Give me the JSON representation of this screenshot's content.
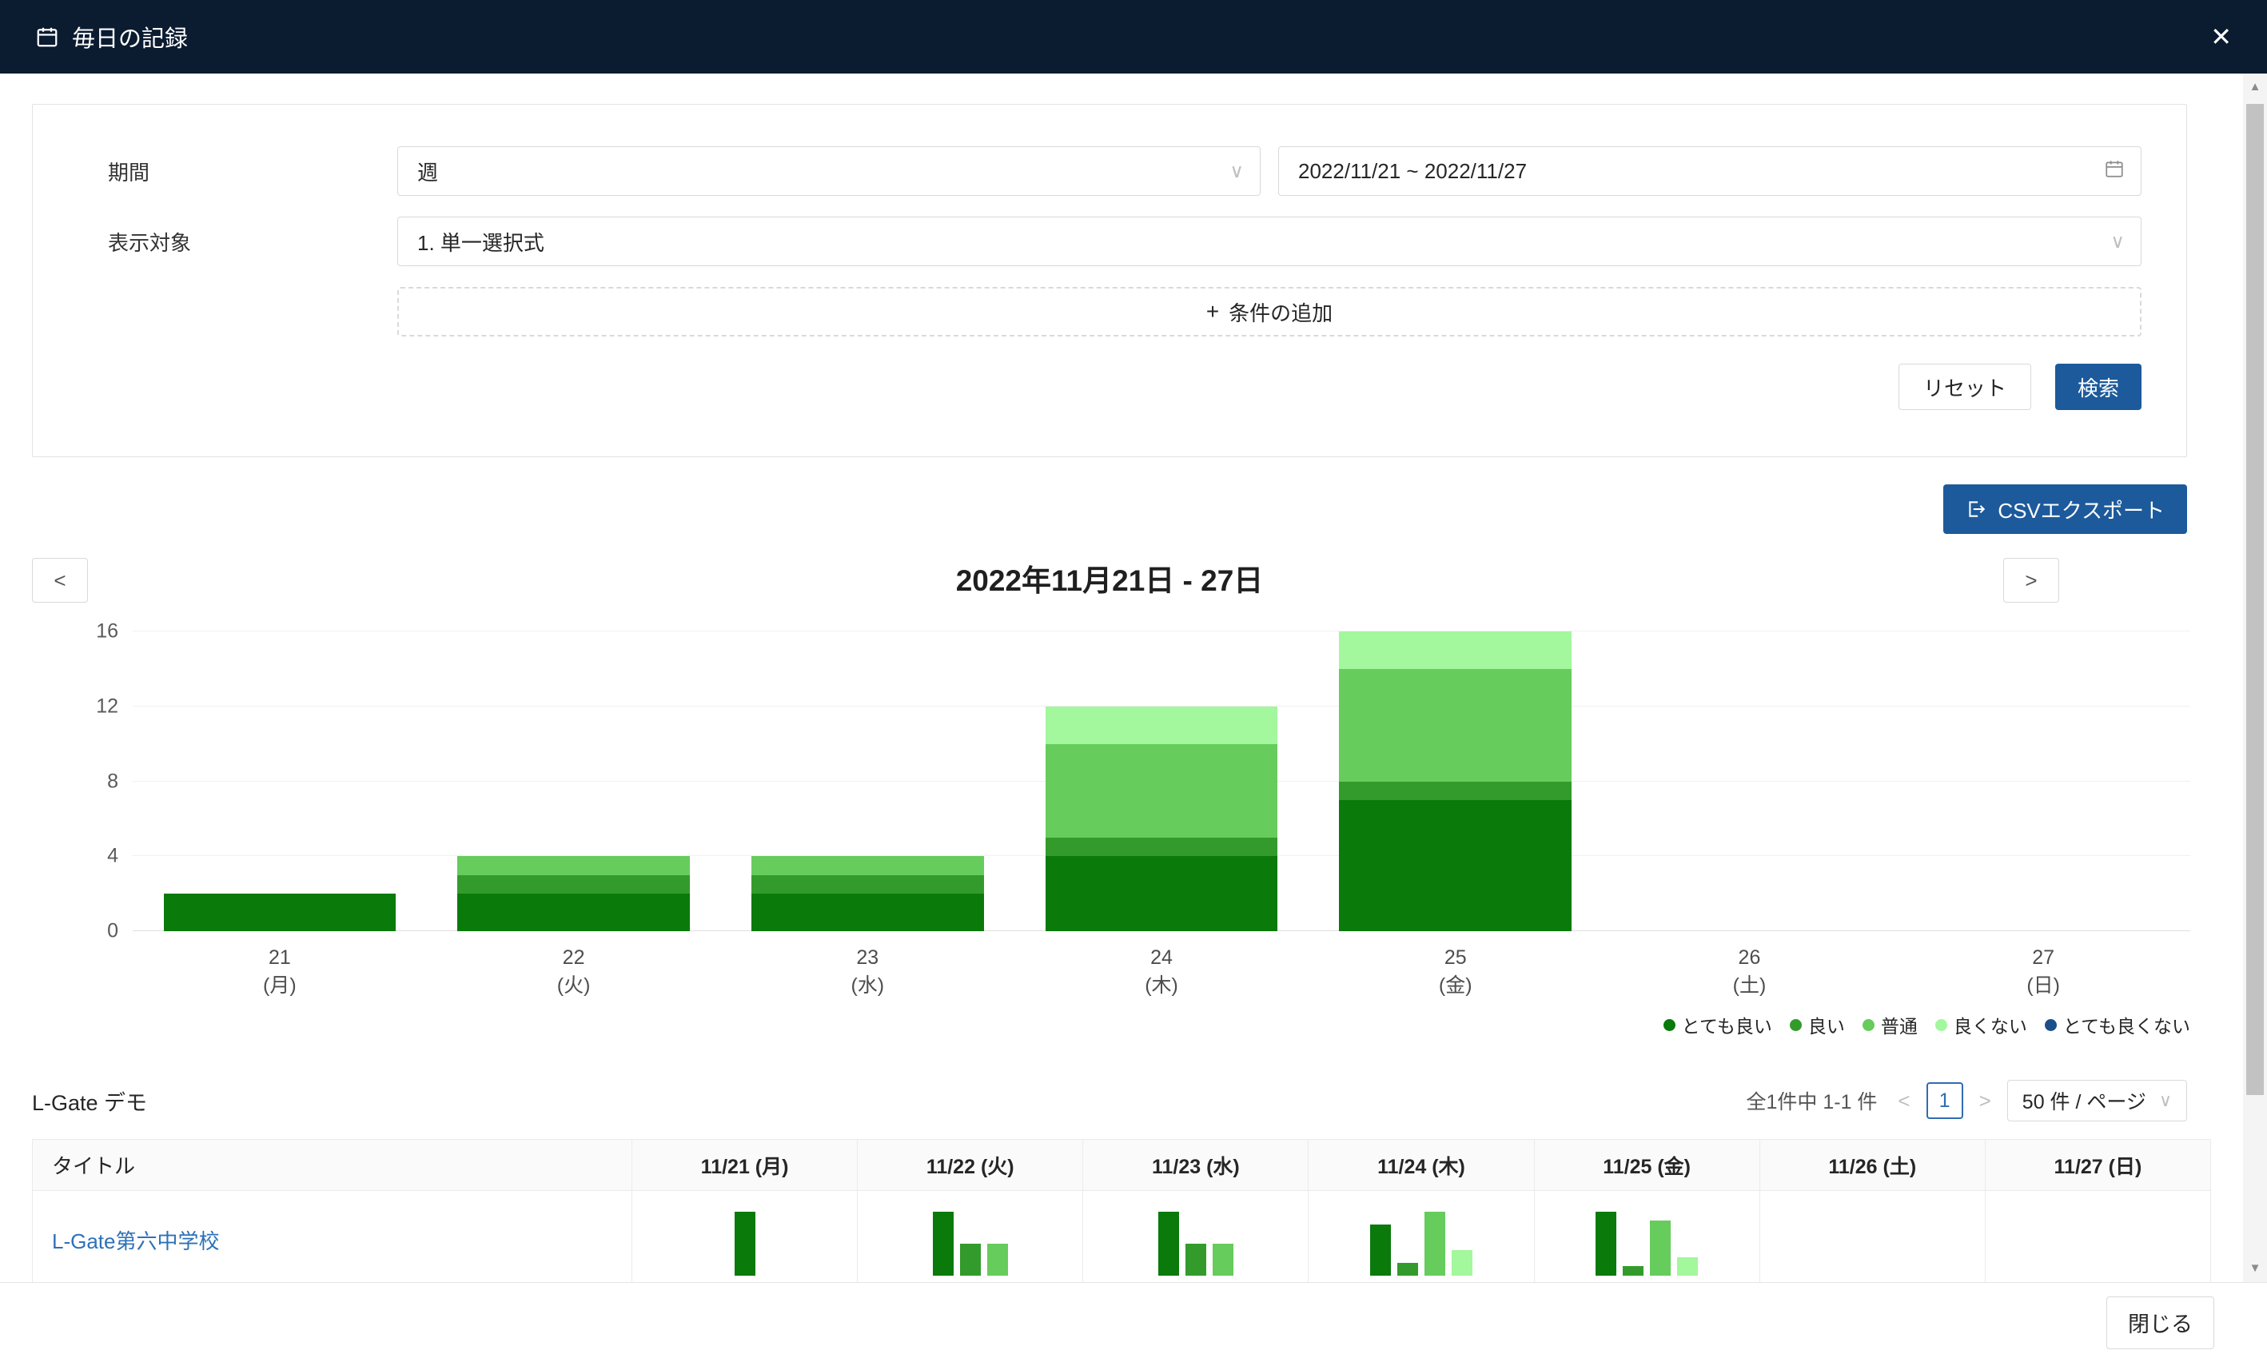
{
  "modal": {
    "title": "毎日の記録",
    "close_glyph": "✕"
  },
  "filters": {
    "period_label": "期間",
    "period_value": "週",
    "date_range": "2022/11/21 ~ 2022/11/27",
    "target_label": "表示対象",
    "target_value": "1. 単一選択式",
    "add_condition_label": "条件の追加",
    "add_condition_plus": "+",
    "reset_label": "リセット",
    "search_label": "検索"
  },
  "toolbar": {
    "csv_export_label": "CSVエクスポート"
  },
  "chart_nav": {
    "prev": "<",
    "next": ">"
  },
  "colors": {
    "primary_blue": "#1d5a9b",
    "header_navy": "#0b1b30",
    "link_blue": "#2e71b8"
  },
  "chart_data": {
    "type": "bar",
    "stacked": true,
    "title": "2022年11月21日 - 27日",
    "categories": [
      {
        "day": "21",
        "weekday": "(月)"
      },
      {
        "day": "22",
        "weekday": "(火)"
      },
      {
        "day": "23",
        "weekday": "(水)"
      },
      {
        "day": "24",
        "weekday": "(木)"
      },
      {
        "day": "25",
        "weekday": "(金)"
      },
      {
        "day": "26",
        "weekday": "(土)"
      },
      {
        "day": "27",
        "weekday": "(日)"
      }
    ],
    "series": [
      {
        "name": "とても良い",
        "color": "#0a7a0a",
        "values": [
          2,
          2,
          2,
          4,
          7,
          0,
          0
        ]
      },
      {
        "name": "良い",
        "color": "#339b2b",
        "values": [
          0,
          1,
          1,
          1,
          1,
          0,
          0
        ]
      },
      {
        "name": "普通",
        "color": "#66cc5c",
        "values": [
          0,
          1,
          1,
          5,
          6,
          0,
          0
        ]
      },
      {
        "name": "良くない",
        "color": "#a3f79c",
        "values": [
          0,
          0,
          0,
          2,
          2,
          0,
          0
        ]
      },
      {
        "name": "とても良くない",
        "color": "#1b4f8a",
        "values": [
          0,
          0,
          0,
          0,
          0,
          0,
          0
        ]
      }
    ],
    "yticks": [
      0,
      4,
      8,
      12,
      16
    ],
    "ylim": [
      0,
      16
    ],
    "grid": true,
    "legend_position": "bottom-right"
  },
  "table_section": {
    "group_title": "L-Gate デモ",
    "pagination": {
      "total_text": "全1件中 1-1 件",
      "prev_glyph": "<",
      "page": "1",
      "next_glyph": ">",
      "page_size_text": "50 件 / ページ"
    },
    "columns": [
      "タイトル",
      "11/21 (月)",
      "11/22 (火)",
      "11/23 (水)",
      "11/24 (木)",
      "11/25 (金)",
      "11/26 (土)",
      "11/27 (日)"
    ],
    "rows": [
      {
        "title": "L-Gate第六中学校",
        "daily_bars": [
          [
            {
              "name": "とても良い",
              "value": 2
            }
          ],
          [
            {
              "name": "とても良い",
              "value": 2
            },
            {
              "name": "良い",
              "value": 1
            },
            {
              "name": "普通",
              "value": 1
            }
          ],
          [
            {
              "name": "とても良い",
              "value": 2
            },
            {
              "name": "良い",
              "value": 1
            },
            {
              "name": "普通",
              "value": 1
            }
          ],
          [
            {
              "name": "とても良い",
              "value": 4
            },
            {
              "name": "良い",
              "value": 1
            },
            {
              "name": "普通",
              "value": 5
            },
            {
              "name": "良くない",
              "value": 2
            }
          ],
          [
            {
              "name": "とても良い",
              "value": 7
            },
            {
              "name": "良い",
              "value": 1
            },
            {
              "name": "普通",
              "value": 6
            },
            {
              "name": "良くない",
              "value": 2
            }
          ],
          [],
          []
        ]
      }
    ]
  },
  "footer": {
    "close_label": "閉じる"
  }
}
